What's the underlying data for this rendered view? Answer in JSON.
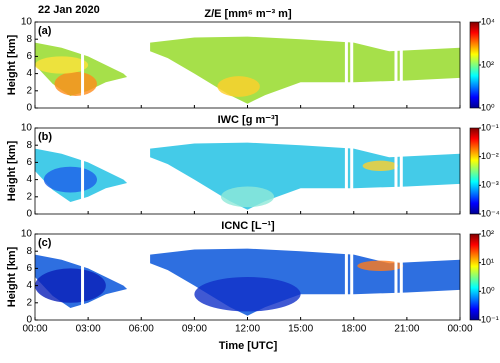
{
  "chart_data": [
    {
      "type": "heatmap",
      "title": "Z/E [mm⁶ m⁻³ m]",
      "panel_label": "(a)",
      "annotation": "22 Jan 2020",
      "ylabel": "Height [km]",
      "ylim": [
        0,
        10
      ],
      "yticks": [
        0,
        2,
        4,
        6,
        8,
        10
      ],
      "colorbar_log": true,
      "colorbar_lim": [
        1,
        10000
      ],
      "colorbar_ticks": [
        {
          "value": 1,
          "label": "10⁰"
        },
        {
          "value": 100,
          "label": "10²"
        },
        {
          "value": 10000,
          "label": "10⁴"
        }
      ],
      "color": "#a6e04a"
    },
    {
      "type": "heatmap",
      "title": "IWC [g m⁻³]",
      "panel_label": "(b)",
      "ylabel": "Height [km]",
      "ylim": [
        0,
        10
      ],
      "yticks": [
        0,
        2,
        4,
        6,
        8,
        10
      ],
      "colorbar_log": true,
      "colorbar_lim": [
        0.0001,
        0.1
      ],
      "colorbar_ticks": [
        {
          "value": 0.0001,
          "label": "10⁻⁴"
        },
        {
          "value": 0.001,
          "label": "10⁻³"
        },
        {
          "value": 0.01,
          "label": "10⁻²"
        },
        {
          "value": 0.1,
          "label": "10⁻¹"
        }
      ],
      "color": "#44cbe8"
    },
    {
      "type": "heatmap",
      "title": "ICNC [L⁻¹]",
      "panel_label": "(c)",
      "ylabel": "Height [km]",
      "xlabel": "Time [UTC]",
      "xlim": [
        0,
        24
      ],
      "xticks": [
        {
          "value": 0,
          "label": "00:00"
        },
        {
          "value": 3,
          "label": "03:00"
        },
        {
          "value": 6,
          "label": "06:00"
        },
        {
          "value": 9,
          "label": "09:00"
        },
        {
          "value": 12,
          "label": "12:00"
        },
        {
          "value": 15,
          "label": "15:00"
        },
        {
          "value": 18,
          "label": "18:00"
        },
        {
          "value": 21,
          "label": "21:00"
        },
        {
          "value": 24,
          "label": "00:00"
        }
      ],
      "ylim": [
        0,
        10
      ],
      "yticks": [
        0,
        2,
        4,
        6,
        8,
        10
      ],
      "colorbar_log": true,
      "colorbar_lim": [
        0.1,
        100
      ],
      "colorbar_ticks": [
        {
          "value": 0.1,
          "label": "10⁻¹"
        },
        {
          "value": 1,
          "label": "10⁰"
        },
        {
          "value": 10,
          "label": "10¹"
        },
        {
          "value": 100,
          "label": "10²"
        }
      ],
      "color": "#2e6fe0"
    }
  ]
}
